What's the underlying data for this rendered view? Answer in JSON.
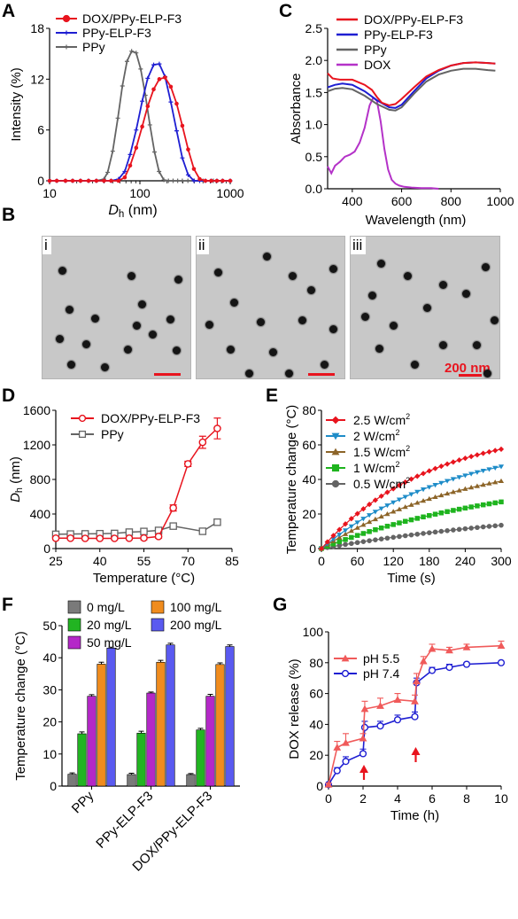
{
  "panels": {
    "A": "A",
    "B": "B",
    "C": "C",
    "D": "D",
    "E": "E",
    "F": "F",
    "G": "G"
  },
  "tem": {
    "images": [
      {
        "tag": "i",
        "scale_label": ""
      },
      {
        "tag": "ii",
        "scale_label": ""
      },
      {
        "tag": "iii",
        "scale_label": "200 nm"
      }
    ]
  },
  "chart_data": [
    {
      "panel": "A",
      "type": "line",
      "xscale": "log",
      "xlabel": "D",
      "xlabel_sub": "h",
      "xlabel_unit": " (nm)",
      "ylabel": "Intensity (%)",
      "xlim": [
        10,
        1000
      ],
      "ylim": [
        0,
        18
      ],
      "xticks": [
        10,
        100,
        1000
      ],
      "xtick_labels": [
        "10",
        "100",
        "1000"
      ],
      "yticks": [
        0,
        6,
        12,
        18
      ],
      "ytick_labels": [
        "0",
        "6",
        "12",
        "18"
      ],
      "legend": "top-left",
      "series": [
        {
          "name": "DOX/PPy-ELP-F3",
          "color": "#e8141e",
          "marker": "o",
          "x": [
            10,
            12,
            15,
            18,
            22,
            27,
            33,
            40,
            48,
            58,
            68,
            78,
            91,
            106,
            122,
            142,
            164,
            190,
            220,
            255,
            295,
            342,
            396,
            459,
            531,
            615,
            712,
            825,
            1000
          ],
          "y": [
            0,
            0,
            0,
            0,
            0,
            0,
            0,
            0,
            0,
            0,
            0.4,
            1.8,
            3.9,
            6.4,
            8.8,
            10.8,
            12.0,
            12.2,
            11.1,
            9.1,
            6.5,
            3.7,
            1.4,
            0.2,
            0,
            0,
            0,
            0,
            0
          ]
        },
        {
          "name": "PPy-ELP-F3",
          "color": "#1e1ed2",
          "marker": "+",
          "x": [
            10,
            12,
            15,
            18,
            22,
            27,
            33,
            40,
            48,
            58,
            68,
            78,
            91,
            106,
            122,
            142,
            164,
            190,
            220,
            255,
            295,
            342,
            396,
            459,
            531,
            615,
            712,
            825,
            1000
          ],
          "y": [
            0,
            0,
            0,
            0,
            0,
            0,
            0,
            0,
            0,
            0.2,
            1.1,
            3.1,
            6.0,
            9.4,
            12.1,
            13.7,
            13.8,
            12.3,
            9.3,
            5.9,
            2.7,
            0.7,
            0,
            0,
            0,
            0,
            0,
            0,
            0
          ]
        },
        {
          "name": "PPy",
          "color": "#646464",
          "marker": "+",
          "x": [
            10,
            12,
            15,
            18,
            22,
            27,
            33,
            40,
            44,
            50,
            57,
            64,
            72,
            81,
            91,
            102,
            115,
            129,
            145,
            163,
            184,
            207,
            233,
            262,
            295,
            340,
            400,
            500,
            650,
            820,
            1000
          ],
          "y": [
            0,
            0,
            0,
            0,
            0,
            0,
            0,
            0.2,
            1.0,
            3.5,
            7.4,
            11.2,
            14.1,
            15.3,
            15.1,
            13.2,
            10.1,
            6.6,
            3.4,
            1.1,
            0.1,
            0,
            0,
            0,
            0,
            0,
            0,
            0,
            0,
            0,
            0
          ]
        }
      ]
    },
    {
      "panel": "C",
      "type": "line",
      "xlabel": "Wavelength (nm)",
      "ylabel": "Absorbance",
      "xlim": [
        300,
        1000
      ],
      "ylim": [
        0,
        2.5
      ],
      "xticks": [
        400,
        600,
        800,
        1000
      ],
      "xtick_labels": [
        "400",
        "600",
        "800",
        "1000"
      ],
      "yticks": [
        0,
        0.5,
        1.0,
        1.5,
        2.0,
        2.5
      ],
      "ytick_labels": [
        "0.0",
        "0.5",
        "1.0",
        "1.5",
        "2.0",
        "2.5"
      ],
      "legend": "top-right",
      "series": [
        {
          "name": "DOX/PPy-ELP-F3",
          "color": "#e8141e",
          "x": [
            300,
            320,
            350,
            400,
            450,
            480,
            500,
            520,
            550,
            575,
            600,
            650,
            700,
            750,
            800,
            850,
            900,
            950,
            980
          ],
          "y": [
            1.8,
            1.72,
            1.7,
            1.7,
            1.62,
            1.54,
            1.43,
            1.34,
            1.3,
            1.32,
            1.4,
            1.58,
            1.75,
            1.85,
            1.92,
            1.96,
            1.97,
            1.96,
            1.95
          ]
        },
        {
          "name": "PPy-ELP-F3",
          "color": "#1e1ed2",
          "x": [
            300,
            330,
            360,
            400,
            450,
            500,
            550,
            575,
            600,
            650,
            700,
            750,
            800,
            850,
            900,
            950,
            980
          ],
          "y": [
            1.58,
            1.62,
            1.64,
            1.62,
            1.52,
            1.38,
            1.27,
            1.26,
            1.31,
            1.52,
            1.72,
            1.84,
            1.92,
            1.96,
            1.97,
            1.96,
            1.95
          ]
        },
        {
          "name": "PPy",
          "color": "#646464",
          "x": [
            300,
            330,
            360,
            400,
            450,
            500,
            550,
            575,
            600,
            650,
            700,
            750,
            800,
            850,
            900,
            950,
            980
          ],
          "y": [
            1.52,
            1.56,
            1.57,
            1.55,
            1.45,
            1.32,
            1.23,
            1.22,
            1.27,
            1.48,
            1.67,
            1.78,
            1.84,
            1.87,
            1.87,
            1.85,
            1.84
          ]
        },
        {
          "name": "DOX",
          "color": "#b432c8",
          "x": [
            300,
            315,
            330,
            350,
            370,
            390,
            410,
            430,
            450,
            470,
            485,
            500,
            515,
            530,
            545,
            560,
            575,
            590,
            610,
            640,
            680,
            720,
            750
          ],
          "y": [
            0.35,
            0.24,
            0.36,
            0.42,
            0.5,
            0.53,
            0.58,
            0.72,
            0.95,
            1.3,
            1.42,
            1.37,
            1.05,
            0.62,
            0.3,
            0.14,
            0.08,
            0.05,
            0.03,
            0.02,
            0.01,
            0.01,
            0.0
          ]
        }
      ]
    },
    {
      "panel": "D",
      "type": "line",
      "xlabel": "Temperature (°C)",
      "ylabel": "D",
      "ylabel_sub": "h",
      "ylabel_unit": " (nm)",
      "xlim": [
        25,
        85
      ],
      "ylim": [
        0,
        1600
      ],
      "xticks": [
        25,
        40,
        55,
        70,
        85
      ],
      "xtick_labels": [
        "25",
        "40",
        "55",
        "70",
        "85"
      ],
      "yticks": [
        0,
        400,
        800,
        1200,
        1600
      ],
      "ytick_labels": [
        "0",
        "400",
        "800",
        "1200",
        "1600"
      ],
      "legend": "top-left",
      "series": [
        {
          "name": "DOX/PPy-ELP-F3",
          "color": "#e8141e",
          "marker": "o",
          "x": [
            25,
            30,
            35,
            40,
            45,
            50,
            55,
            60,
            65,
            70,
            75,
            80
          ],
          "y": [
            120,
            120,
            118,
            118,
            118,
            120,
            122,
            140,
            470,
            980,
            1230,
            1390
          ],
          "err": [
            15,
            15,
            15,
            15,
            15,
            15,
            20,
            20,
            35,
            30,
            70,
            120
          ]
        },
        {
          "name": "PPy",
          "color": "#646464",
          "marker": "s",
          "x": [
            25,
            30,
            35,
            40,
            45,
            50,
            55,
            60,
            65,
            75,
            80
          ],
          "y": [
            165,
            168,
            170,
            172,
            175,
            190,
            198,
            210,
            260,
            200,
            305
          ],
          "err": [
            10,
            10,
            10,
            10,
            10,
            10,
            10,
            12,
            20,
            15,
            30
          ]
        }
      ]
    },
    {
      "panel": "E",
      "type": "line",
      "xlabel": "Time (s)",
      "ylabel": "Temperature change (°C)",
      "xlim": [
        0,
        300
      ],
      "ylim": [
        0,
        80
      ],
      "xticks": [
        0,
        60,
        120,
        180,
        240,
        300
      ],
      "xtick_labels": [
        "0",
        "60",
        "120",
        "180",
        "240",
        "300"
      ],
      "yticks": [
        0,
        20,
        40,
        60,
        80
      ],
      "ytick_labels": [
        "0",
        "20",
        "40",
        "60",
        "80"
      ],
      "legend": "top-left",
      "series": [
        {
          "name": "2.5 W/cm",
          "sup": "2",
          "color": "#e8141e",
          "marker": "diamond",
          "y_end": 57.5,
          "k": 1.25
        },
        {
          "name": "2 W/cm",
          "sup": "2",
          "color": "#1e8cc8",
          "marker": "tri-down",
          "y_end": 47.5,
          "k": 1.0
        },
        {
          "name": "1.5 W/cm",
          "sup": "2",
          "color": "#8c6428",
          "marker": "tri-up",
          "y_end": 39.0,
          "k": 0.9
        },
        {
          "name": "1 W/cm",
          "sup": "2",
          "color": "#1eb41e",
          "marker": "square",
          "y_end": 27.0,
          "k": 0.7
        },
        {
          "name": "0.5 W/cm",
          "sup": "2",
          "color": "#646464",
          "marker": "circle",
          "y_end": 13.5,
          "k": 0.5
        }
      ]
    },
    {
      "panel": "F",
      "type": "bar",
      "ylabel": "Temperature change (°C)",
      "ylim": [
        0,
        50
      ],
      "yticks": [
        0,
        10,
        20,
        30,
        40,
        50
      ],
      "ytick_labels": [
        "0",
        "10",
        "20",
        "30",
        "40",
        "50"
      ],
      "categories": [
        "PPy",
        "PPy-ELP-F3",
        "DOX/PPy-ELP-F3"
      ],
      "legend": "top",
      "series": [
        {
          "name": "0 mg/L",
          "color": "#7a7a7a",
          "values": [
            3.7,
            3.6,
            3.6
          ],
          "err": [
            0.4,
            0.4,
            0.3
          ]
        },
        {
          "name": "20 mg/L",
          "color": "#22b422",
          "values": [
            16.3,
            16.5,
            17.5
          ],
          "err": [
            0.6,
            0.6,
            0.5
          ]
        },
        {
          "name": "50 mg/L",
          "color": "#b428c8",
          "values": [
            28.0,
            29.0,
            28.0
          ],
          "err": [
            0.5,
            0.3,
            0.6
          ]
        },
        {
          "name": "100 mg/L",
          "color": "#f08c1e",
          "values": [
            38.0,
            38.6,
            37.9
          ],
          "err": [
            0.6,
            0.6,
            0.5
          ]
        },
        {
          "name": "200 mg/L",
          "color": "#5a5af0",
          "values": [
            43.0,
            44.0,
            43.5
          ],
          "err": [
            0.3,
            0.5,
            0.5
          ]
        }
      ]
    },
    {
      "panel": "G",
      "type": "line",
      "xlabel": "Time (h)",
      "ylabel": "DOX release (%)",
      "xlim": [
        0,
        10
      ],
      "ylim": [
        0,
        100
      ],
      "xticks": [
        0,
        2,
        4,
        6,
        8,
        10
      ],
      "xtick_labels": [
        "0",
        "2",
        "4",
        "6",
        "8",
        "10"
      ],
      "yticks": [
        0,
        20,
        40,
        60,
        80,
        100
      ],
      "ytick_labels": [
        "0",
        "20",
        "40",
        "60",
        "80",
        "100"
      ],
      "legend": "top-left",
      "arrows_at_x": [
        2,
        5
      ],
      "series": [
        {
          "name": "pH 5.5",
          "color": "#f05a5a",
          "marker": "tri-up",
          "x": [
            0,
            0.5,
            1,
            2,
            2.1,
            3,
            4,
            5,
            5.1,
            5.5,
            6,
            7,
            8,
            10
          ],
          "y": [
            1,
            25,
            28,
            31,
            50,
            52,
            56,
            55,
            68,
            81,
            89,
            88,
            90,
            91
          ],
          "err": [
            1,
            4,
            6,
            3,
            5,
            5,
            4,
            4,
            5,
            3,
            3,
            2,
            2,
            3
          ]
        },
        {
          "name": "pH 7.4",
          "color": "#1e1ed2",
          "marker": "o",
          "x": [
            0,
            0.5,
            1,
            2,
            2.1,
            3,
            4,
            5,
            5.1,
            6,
            7,
            8,
            10
          ],
          "y": [
            1,
            10,
            16,
            21,
            38,
            39,
            43,
            45,
            67,
            75,
            77,
            79,
            80
          ],
          "err": [
            1,
            2,
            3,
            3,
            4,
            3,
            3,
            3,
            3,
            2,
            2,
            1,
            1
          ]
        }
      ]
    }
  ]
}
